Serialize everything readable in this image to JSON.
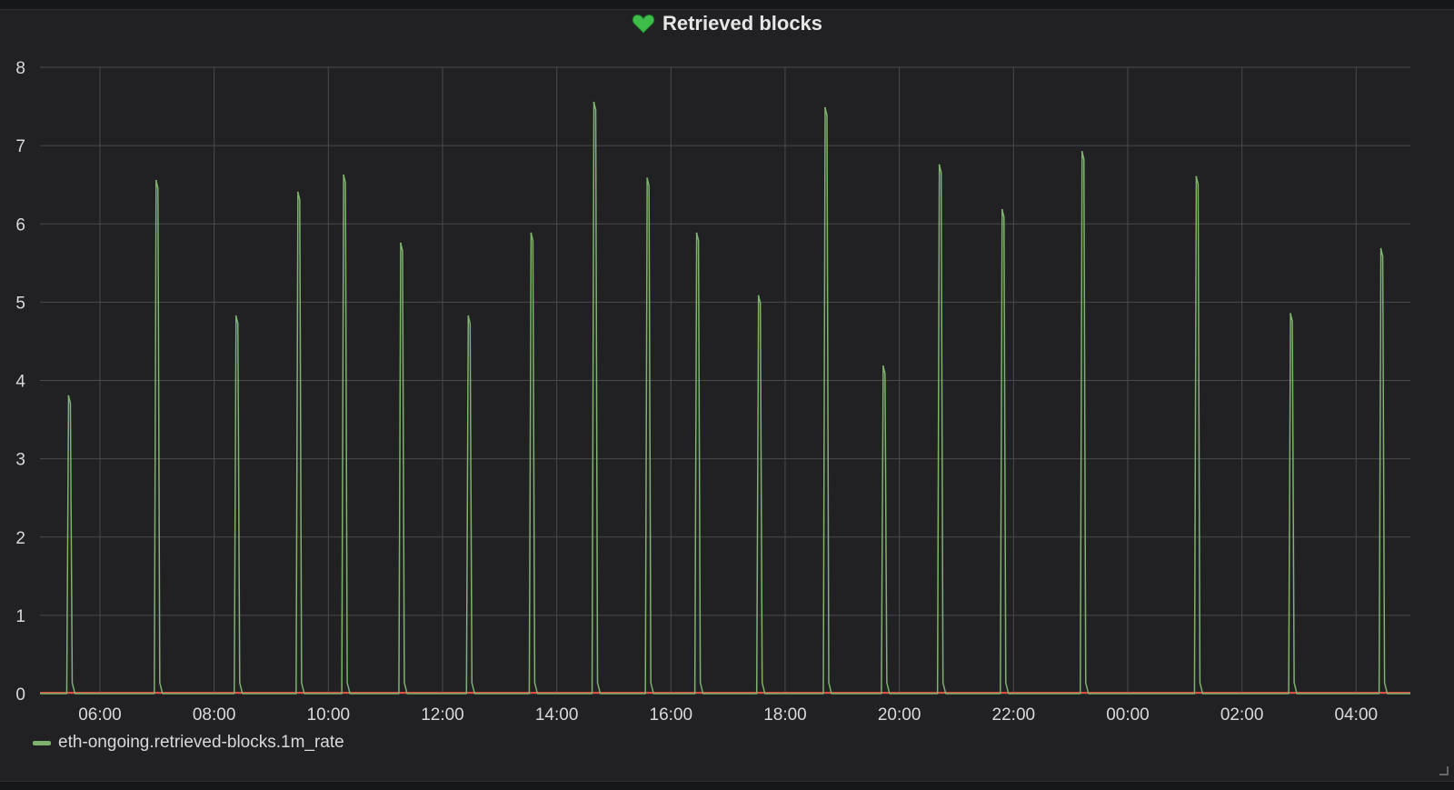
{
  "panel": {
    "title": "Retrieved blocks",
    "title_icon": "heart-icon",
    "icon_color": "#3ebd4a"
  },
  "legend": {
    "items": [
      {
        "label": "eth-ongoing.retrieved-blocks.1m_rate",
        "color": "#7eb26d"
      }
    ]
  },
  "chart_data": {
    "type": "line",
    "series": [
      {
        "name": "eth-ongoing.retrieved-blocks.1m_rate",
        "color": "#7eb26d",
        "spike_times": [
          "05:28",
          "07:00",
          "08:24",
          "09:29",
          "10:17",
          "11:17",
          "12:28",
          "13:34",
          "14:40",
          "15:36",
          "16:28",
          "17:33",
          "18:43",
          "19:44",
          "20:43",
          "21:49",
          "23:13",
          "01:13",
          "02:52",
          "04:27"
        ],
        "spike_values": [
          3.8,
          6.55,
          4.82,
          6.4,
          6.62,
          5.75,
          4.82,
          5.88,
          7.55,
          6.58,
          5.88,
          5.08,
          7.48,
          4.18,
          6.75,
          6.18,
          6.92,
          6.6,
          4.85,
          5.68
        ],
        "baseline": 0
      }
    ],
    "baseline_color": "#e24d42",
    "x_ticks": [
      "06:00",
      "08:00",
      "10:00",
      "12:00",
      "14:00",
      "16:00",
      "18:00",
      "20:00",
      "22:00",
      "00:00",
      "02:00",
      "04:00"
    ],
    "x_range": [
      "04:57",
      "04:57"
    ],
    "y_ticks": [
      0,
      1,
      2,
      3,
      4,
      5,
      6,
      7,
      8
    ],
    "ylim": [
      0,
      8
    ],
    "grid": true,
    "legend_position": "bottom-left"
  }
}
